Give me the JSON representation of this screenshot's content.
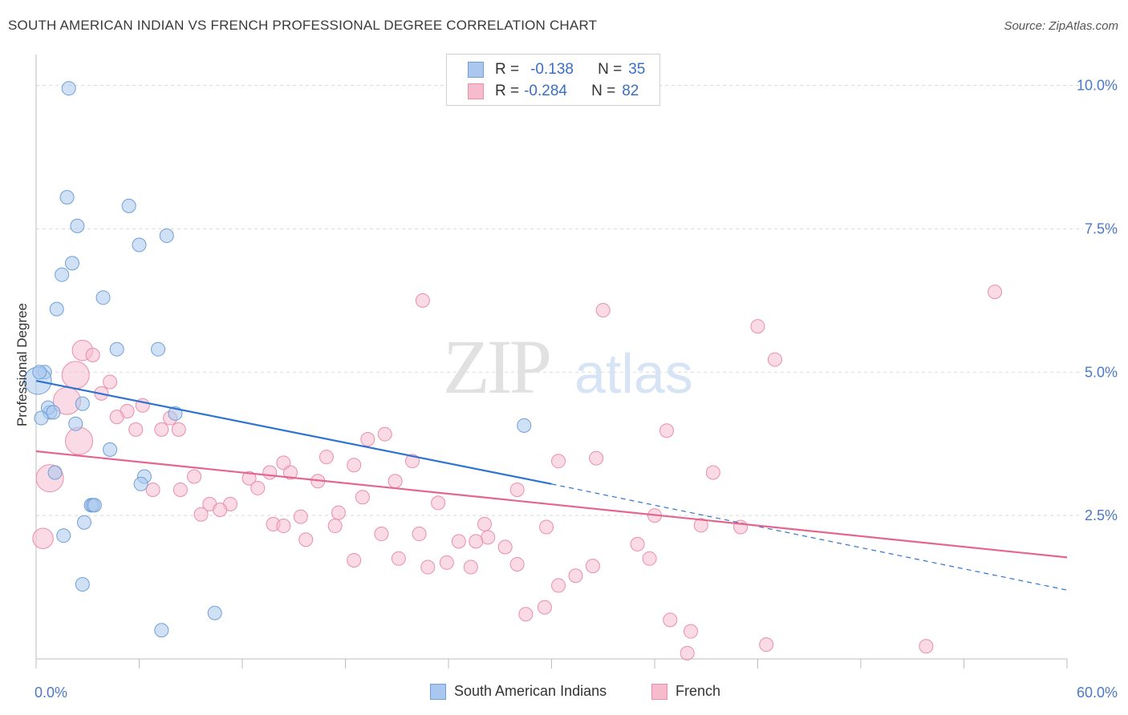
{
  "title": "SOUTH AMERICAN INDIAN VS FRENCH PROFESSIONAL DEGREE CORRELATION CHART",
  "source": "Source: ZipAtlas.com",
  "watermark": {
    "zip": "ZIP",
    "atlas": "atlas"
  },
  "stats": [
    {
      "r_label": "R =",
      "r_value": "-0.138",
      "n_label": "N =",
      "n_value": "35"
    },
    {
      "r_label": "R =",
      "r_value": "-0.284",
      "n_label": "N =",
      "n_value": "82"
    }
  ],
  "colors": {
    "blue_fill": "#aac8ef",
    "blue_stroke": "#6f9fd8",
    "blue_line": "#2f73d0",
    "pink_fill": "#f6bccd",
    "pink_stroke": "#ea8eaa",
    "pink_line": "#e3668f",
    "tick_text": "#4a78c9",
    "grid": "#d8d8d8"
  },
  "chart_data": {
    "type": "scatter",
    "title": "SOUTH AMERICAN INDIAN VS FRENCH PROFESSIONAL DEGREE CORRELATION CHART",
    "xlabel": "",
    "ylabel": "Professional Degree",
    "xlim": [
      0,
      60
    ],
    "ylim": [
      0,
      10.4
    ],
    "x_tick_labels": [
      "0.0%",
      "60.0%"
    ],
    "y_ticks": [
      2.5,
      5.0,
      7.5,
      10.0
    ],
    "y_tick_labels": [
      "2.5%",
      "5.0%",
      "7.5%",
      "10.0%"
    ],
    "grid": "horizontal dashed",
    "legend_placement": "bottom-center",
    "series": [
      {
        "name": "South American Indians",
        "color": "#aac8ef",
        "trend": {
          "x": [
            0,
            30
          ],
          "y": [
            4.85,
            3.05
          ],
          "dashed_to": [
            60,
            1.2
          ]
        },
        "points": [
          [
            1.9,
            9.95,
            1
          ],
          [
            1.8,
            8.05,
            1
          ],
          [
            5.4,
            7.9,
            1
          ],
          [
            2.4,
            7.55,
            1
          ],
          [
            7.6,
            7.38,
            1
          ],
          [
            6.0,
            7.22,
            1
          ],
          [
            2.1,
            6.9,
            1
          ],
          [
            1.5,
            6.7,
            1
          ],
          [
            3.9,
            6.3,
            1
          ],
          [
            1.2,
            6.1,
            1
          ],
          [
            4.7,
            5.4,
            1
          ],
          [
            7.1,
            5.4,
            1
          ],
          [
            0.5,
            5.0,
            1
          ],
          [
            0.1,
            4.85,
            2
          ],
          [
            2.7,
            4.45,
            1
          ],
          [
            0.8,
            4.3,
            1
          ],
          [
            0.7,
            4.38,
            1
          ],
          [
            1.0,
            4.3,
            1
          ],
          [
            8.1,
            4.28,
            1
          ],
          [
            2.3,
            4.1,
            1
          ],
          [
            28.4,
            4.07,
            1
          ],
          [
            4.3,
            3.65,
            1
          ],
          [
            1.1,
            3.25,
            1
          ],
          [
            6.3,
            3.18,
            1
          ],
          [
            6.1,
            3.05,
            1
          ],
          [
            3.2,
            2.68,
            1
          ],
          [
            3.3,
            2.68,
            1
          ],
          [
            3.4,
            2.68,
            1
          ],
          [
            2.8,
            2.38,
            1
          ],
          [
            1.6,
            2.15,
            1
          ],
          [
            2.7,
            1.3,
            1
          ],
          [
            10.4,
            0.8,
            1
          ],
          [
            7.3,
            0.5,
            1
          ],
          [
            0.2,
            5.0,
            1
          ],
          [
            0.3,
            4.2,
            1
          ]
        ]
      },
      {
        "name": "French",
        "color": "#f6bccd",
        "trend": {
          "x": [
            0,
            60
          ],
          "y": [
            3.62,
            1.77
          ]
        },
        "points": [
          [
            2.7,
            5.38,
            1.5
          ],
          [
            3.3,
            5.3,
            1
          ],
          [
            2.3,
            4.95,
            2
          ],
          [
            4.3,
            4.83,
            1
          ],
          [
            3.8,
            4.63,
            1
          ],
          [
            1.8,
            4.5,
            2
          ],
          [
            6.2,
            4.42,
            1
          ],
          [
            5.3,
            4.32,
            1
          ],
          [
            4.7,
            4.22,
            1
          ],
          [
            7.8,
            4.2,
            1
          ],
          [
            5.8,
            4.0,
            1
          ],
          [
            7.3,
            4.0,
            1
          ],
          [
            8.3,
            4.0,
            1
          ],
          [
            2.5,
            3.8,
            2
          ],
          [
            20.3,
            3.92,
            1
          ],
          [
            19.3,
            3.83,
            1
          ],
          [
            16.9,
            3.52,
            1
          ],
          [
            21.9,
            3.45,
            1
          ],
          [
            28.0,
            2.95,
            1
          ],
          [
            30.4,
            3.45,
            1
          ],
          [
            32.6,
            3.5,
            1
          ],
          [
            36.7,
            3.98,
            1
          ],
          [
            39.4,
            3.25,
            1
          ],
          [
            14.4,
            3.42,
            1
          ],
          [
            18.5,
            3.38,
            1
          ],
          [
            13.6,
            3.25,
            1
          ],
          [
            14.8,
            3.25,
            1
          ],
          [
            12.4,
            3.15,
            1
          ],
          [
            9.2,
            3.18,
            1
          ],
          [
            6.8,
            2.95,
            1
          ],
          [
            8.4,
            2.95,
            1
          ],
          [
            12.9,
            2.98,
            1
          ],
          [
            16.4,
            3.1,
            1
          ],
          [
            20.9,
            3.1,
            1
          ],
          [
            0.8,
            3.15,
            2
          ],
          [
            19.0,
            2.82,
            1
          ],
          [
            23.4,
            2.72,
            1
          ],
          [
            10.1,
            2.7,
            1
          ],
          [
            11.3,
            2.7,
            1
          ],
          [
            9.6,
            2.52,
            1
          ],
          [
            10.7,
            2.6,
            1
          ],
          [
            17.6,
            2.55,
            1
          ],
          [
            15.4,
            2.48,
            1
          ],
          [
            36.0,
            2.5,
            1
          ],
          [
            13.8,
            2.35,
            1
          ],
          [
            14.4,
            2.32,
            1
          ],
          [
            17.4,
            2.32,
            1
          ],
          [
            26.1,
            2.35,
            1
          ],
          [
            29.7,
            2.3,
            1
          ],
          [
            38.7,
            2.33,
            1
          ],
          [
            41.0,
            2.3,
            1
          ],
          [
            20.1,
            2.18,
            1
          ],
          [
            22.3,
            2.18,
            1
          ],
          [
            26.3,
            2.12,
            1
          ],
          [
            25.6,
            2.05,
            1
          ],
          [
            24.6,
            2.05,
            1
          ],
          [
            15.7,
            2.08,
            1
          ],
          [
            35.0,
            2.0,
            1
          ],
          [
            27.3,
            1.95,
            1
          ],
          [
            35.7,
            1.75,
            1
          ],
          [
            21.1,
            1.75,
            1
          ],
          [
            18.5,
            1.72,
            1
          ],
          [
            23.9,
            1.68,
            1
          ],
          [
            28.0,
            1.65,
            1
          ],
          [
            22.8,
            1.6,
            1
          ],
          [
            25.3,
            1.6,
            1
          ],
          [
            32.4,
            1.62,
            1
          ],
          [
            31.4,
            1.45,
            1
          ],
          [
            30.4,
            1.28,
            1
          ],
          [
            29.6,
            0.9,
            1
          ],
          [
            28.5,
            0.78,
            1
          ],
          [
            36.9,
            0.68,
            1
          ],
          [
            38.1,
            0.48,
            1
          ],
          [
            37.9,
            0.1,
            1
          ],
          [
            42.5,
            0.25,
            1
          ],
          [
            51.8,
            0.22,
            1
          ],
          [
            55.8,
            6.4,
            1
          ],
          [
            22.5,
            6.25,
            1
          ],
          [
            33.0,
            6.08,
            1
          ],
          [
            42.0,
            5.8,
            1
          ],
          [
            43.0,
            5.22,
            1
          ],
          [
            0.4,
            2.1,
            1.5
          ]
        ]
      }
    ]
  },
  "legend": [
    {
      "label": "South American Indians"
    },
    {
      "label": "French"
    }
  ]
}
